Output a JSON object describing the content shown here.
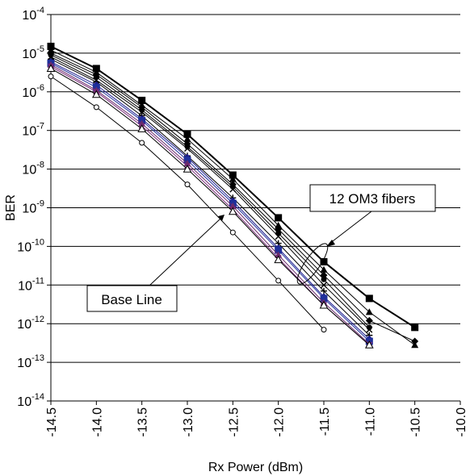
{
  "chart_data": {
    "type": "line",
    "title": "",
    "xlabel": "Rx Power (dBm)",
    "ylabel": "BER",
    "xlim": [
      -14.5,
      -10.0
    ],
    "ylim_exponent": [
      -14,
      -4
    ],
    "y_scale": "log",
    "grid": "horizontal",
    "x_ticks": [
      "-14.5",
      "-14.0",
      "-13.5",
      "-13.0",
      "-12.5",
      "-12.0",
      "-11.5",
      "-11.0",
      "-10.5",
      "-10.0"
    ],
    "y_tick_base": "10",
    "y_tick_exponents": [
      "-4",
      "-5",
      "-6",
      "-7",
      "-8",
      "-9",
      "-10",
      "-11",
      "-12",
      "-13",
      "-14"
    ],
    "annotations": [
      {
        "text": "12 OM3 fibers"
      },
      {
        "text": "Base Line"
      }
    ],
    "series": [
      {
        "marker": "square",
        "color": "#000000",
        "x": [
          -14.5,
          -14.0,
          -13.5,
          -13.0,
          -12.5,
          -12.0,
          -11.5,
          -11.0,
          -10.5
        ],
        "y": [
          1.5e-05,
          4e-06,
          6e-07,
          8e-08,
          7e-09,
          5.5e-10,
          4e-11,
          4.5e-12,
          8e-13
        ]
      },
      {
        "marker": "triangle",
        "color": "#000000",
        "x": [
          -14.5,
          -14.0,
          -13.5,
          -13.0,
          -12.5,
          -12.0,
          -11.5,
          -11.0,
          -10.5
        ],
        "y": [
          1.2e-05,
          3.2e-06,
          4.5e-07,
          6e-08,
          5.5e-09,
          3.5e-10,
          2.5e-11,
          2e-12,
          2.8e-13
        ]
      },
      {
        "marker": "diamond",
        "color": "#000000",
        "x": [
          -14.5,
          -14.0,
          -13.5,
          -13.0,
          -12.5,
          -12.0,
          -11.5,
          -11.0,
          -10.5
        ],
        "y": [
          1e-05,
          2.8e-06,
          4e-07,
          4.5e-08,
          4e-09,
          2.8e-10,
          1.8e-11,
          1.2e-12,
          3.5e-13
        ]
      },
      {
        "marker": "circle",
        "color": "#000000",
        "x": [
          -14.5,
          -14.0,
          -13.5,
          -13.0,
          -12.5,
          -12.0,
          -11.5,
          -11.0
        ],
        "y": [
          9e-06,
          2.4e-06,
          3.4e-07,
          3.8e-08,
          3.5e-09,
          2.2e-10,
          1.4e-11,
          8e-13
        ]
      },
      {
        "marker": "x",
        "color": "#000000",
        "x": [
          -14.5,
          -14.0,
          -13.5,
          -13.0,
          -12.5,
          -12.0,
          -11.5,
          -11.0
        ],
        "y": [
          8e-06,
          2e-06,
          3e-07,
          3.4e-08,
          3e-09,
          1.8e-10,
          1e-11,
          7e-13
        ]
      },
      {
        "marker": "plus",
        "color": "#000000",
        "x": [
          -14.5,
          -14.0,
          -13.5,
          -13.0,
          -12.5,
          -12.0,
          -11.5,
          -11.0
        ],
        "y": [
          7e-06,
          1.8e-06,
          2.4e-07,
          2.2e-08,
          1.8e-09,
          1.2e-10,
          7e-12,
          5e-13
        ]
      },
      {
        "marker": "diamond",
        "color": "#1a1a8c",
        "x": [
          -14.5,
          -14.0,
          -13.5,
          -13.0,
          -12.5,
          -12.0,
          -11.5,
          -11.0
        ],
        "y": [
          6e-06,
          1.5e-06,
          2e-07,
          2e-08,
          1.5e-09,
          9e-11,
          5e-12,
          4e-13
        ]
      },
      {
        "marker": "square",
        "color": "#1f2f9a",
        "x": [
          -14.5,
          -14.0,
          -13.5,
          -13.0,
          -12.5,
          -12.0,
          -11.5,
          -11.0
        ],
        "y": [
          5.5e-06,
          1.3e-06,
          1.8e-07,
          1.7e-08,
          1.3e-09,
          8e-11,
          4.5e-12,
          3.5e-13
        ]
      },
      {
        "marker": "triangle",
        "color": "#6b2a6b",
        "x": [
          -14.5,
          -14.0,
          -13.5,
          -13.0,
          -12.5,
          -12.0,
          -11.5,
          -11.0
        ],
        "y": [
          5e-06,
          1.1e-06,
          1.5e-07,
          1.4e-08,
          1.1e-09,
          6e-11,
          3.5e-12,
          3e-13
        ]
      },
      {
        "marker": "x",
        "color": "#7a2a7a",
        "x": [
          -14.5,
          -14.0,
          -13.5,
          -13.0,
          -12.5,
          -12.0,
          -11.5,
          -11.0
        ],
        "y": [
          4.5e-06,
          1e-06,
          1.3e-07,
          1.2e-08,
          9e-10,
          5e-11,
          3e-12,
          2.8e-13
        ]
      },
      {
        "marker": "triangle-open",
        "color": "#000000",
        "x": [
          -14.5,
          -14.0,
          -13.5,
          -13.0,
          -12.5,
          -12.0,
          -11.5,
          -11.0
        ],
        "y": [
          4e-06,
          8.5e-07,
          1.1e-07,
          1e-08,
          8e-10,
          4.5e-11,
          3e-12,
          2.8e-13
        ]
      },
      {
        "marker": "circle-open",
        "color": "#000000",
        "x": [
          -14.5,
          -14.0,
          -13.5,
          -13.0,
          -12.5,
          -12.0,
          -11.5
        ],
        "y": [
          2.5e-06,
          4e-07,
          4.8e-08,
          4e-09,
          2.3e-10,
          1.3e-11,
          7e-13
        ]
      }
    ]
  }
}
